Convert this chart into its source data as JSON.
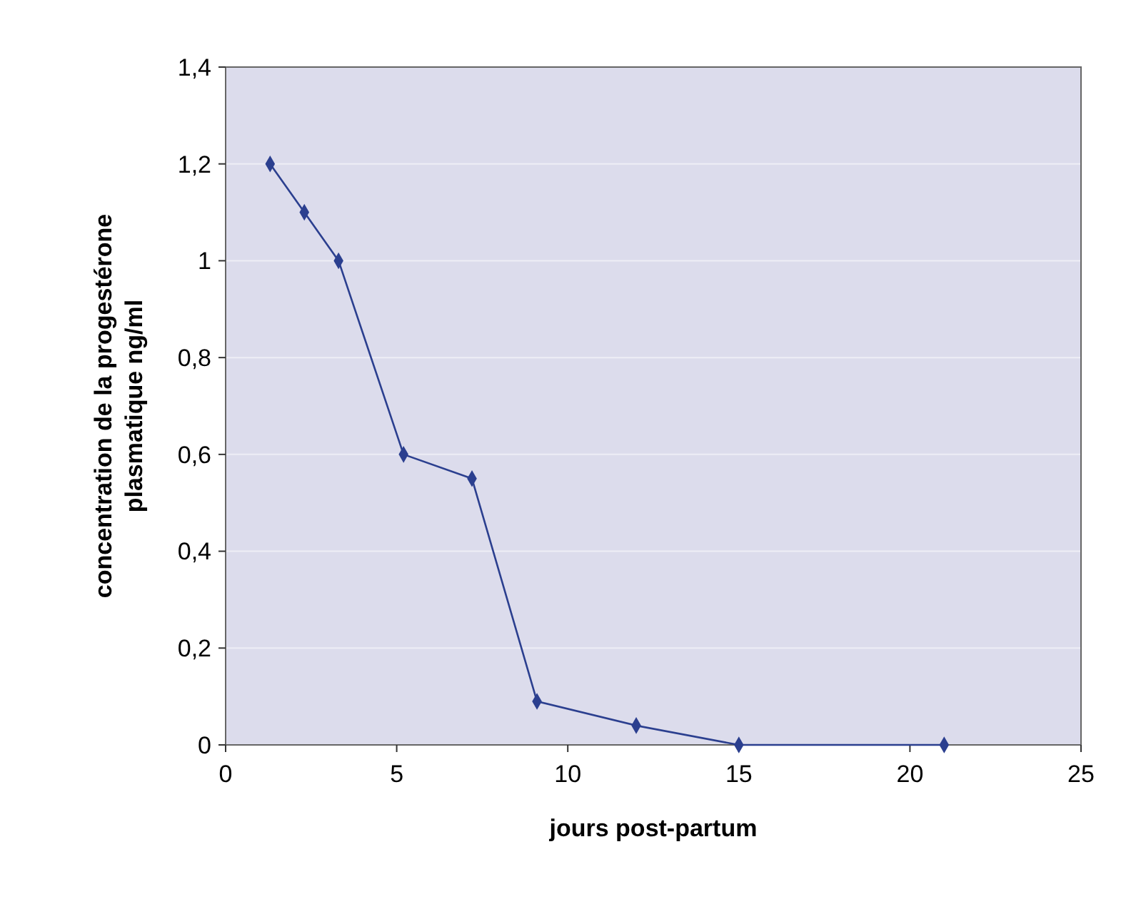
{
  "chart_data": {
    "type": "line",
    "xlabel": "jours post-partum",
    "ylabel": "concentration de la progestérone plasmatique ng/ml",
    "x": [
      1.3,
      2.3,
      3.3,
      5.2,
      7.2,
      9.1,
      12,
      15,
      21
    ],
    "series": [
      {
        "color": "#2b3f8f",
        "values": [
          1.2,
          1.1,
          1.0,
          0.6,
          0.55,
          0.09,
          0.04,
          0,
          0
        ]
      }
    ],
    "xlim": [
      0,
      25
    ],
    "xticks": [
      0,
      5,
      10,
      15,
      20,
      25
    ],
    "ylim": [
      0,
      1.4
    ],
    "yticks": [
      {
        "value": 0,
        "label": "0"
      },
      {
        "value": 0.2,
        "label": "0,2"
      },
      {
        "value": 0.4,
        "label": "0,4"
      },
      {
        "value": 0.6,
        "label": "0,6"
      },
      {
        "value": 0.8,
        "label": "0,8"
      },
      {
        "value": 1,
        "label": "1"
      },
      {
        "value": 1.2,
        "label": "1,2"
      },
      {
        "value": 1.4,
        "label": "1,4"
      }
    ],
    "grid": "y",
    "marker": "diamond",
    "line_style": "solid"
  }
}
